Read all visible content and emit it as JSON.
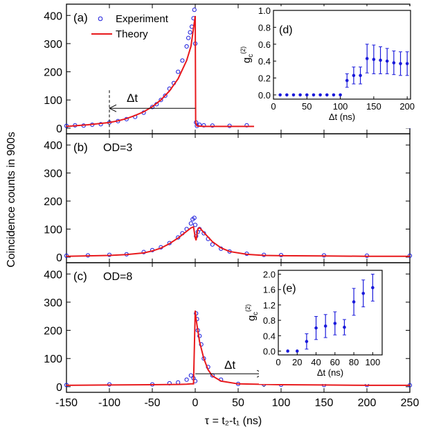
{
  "figure": {
    "ylabel": "Coincidence counts in 900s",
    "xlabel": "τ = t₂-t₁ (ns)",
    "legend": {
      "experiment": "Experiment",
      "theory": "Theory"
    },
    "colors": {
      "experiment": "#1a1adb",
      "theory": "#e8191c",
      "axis": "#000000"
    }
  },
  "chart_data": [
    {
      "id": "a",
      "type": "line",
      "panel_label": "(a)",
      "annotation": "Δt",
      "xlim": [
        -150,
        250
      ],
      "ylim": [
        -20,
        440
      ],
      "xticks": [
        -150,
        -100,
        -50,
        0,
        50,
        100,
        150,
        200,
        250
      ],
      "yticks": [
        0,
        100,
        200,
        300,
        400
      ],
      "series": [
        {
          "name": "Experiment",
          "style": "open-circle",
          "x": [
            -150,
            -140,
            -130,
            -120,
            -110,
            -100,
            -90,
            -80,
            -70,
            -60,
            -50,
            -45,
            -40,
            -35,
            -30,
            -25,
            -20,
            -15,
            -10,
            -8,
            -6,
            -4,
            -2,
            -1,
            0,
            1,
            2,
            5,
            10,
            20,
            40,
            60,
            80,
            100,
            150,
            200,
            250
          ],
          "y": [
            8,
            10,
            9,
            12,
            14,
            20,
            25,
            32,
            40,
            55,
            75,
            85,
            100,
            115,
            140,
            160,
            200,
            240,
            290,
            320,
            340,
            360,
            390,
            420,
            300,
            20,
            8,
            12,
            10,
            9,
            8,
            10,
            8,
            9,
            7,
            8,
            6
          ]
        },
        {
          "name": "Theory",
          "style": "line",
          "x": [
            -150,
            -125,
            -100,
            -90,
            -80,
            -70,
            -60,
            -50,
            -40,
            -30,
            -20,
            -10,
            -5,
            0,
            0.5,
            2,
            10,
            50,
            100,
            150,
            200,
            250
          ],
          "y": [
            6,
            12,
            20,
            26,
            34,
            45,
            58,
            76,
            100,
            132,
            175,
            240,
            290,
            398,
            20,
            8,
            6,
            6,
            6,
            6,
            6,
            6
          ]
        }
      ]
    },
    {
      "id": "b",
      "type": "line",
      "panel_label": "(b)",
      "annotation": "OD=3",
      "xlim": [
        -150,
        250
      ],
      "ylim": [
        -20,
        440
      ],
      "xticks": [
        -150,
        -100,
        -50,
        0,
        50,
        100,
        150,
        200,
        250
      ],
      "yticks": [
        0,
        100,
        200,
        300,
        400
      ],
      "series": [
        {
          "name": "Experiment",
          "style": "open-circle",
          "x": [
            -150,
            -125,
            -100,
            -80,
            -60,
            -50,
            -40,
            -30,
            -20,
            -15,
            -10,
            -5,
            -3,
            -1,
            0,
            1,
            3,
            5,
            10,
            15,
            20,
            30,
            40,
            60,
            80,
            100,
            150,
            200,
            250
          ],
          "y": [
            5,
            6,
            8,
            10,
            18,
            25,
            35,
            50,
            70,
            85,
            100,
            120,
            135,
            140,
            115,
            75,
            90,
            100,
            85,
            65,
            45,
            30,
            20,
            12,
            8,
            7,
            6,
            5,
            5
          ]
        },
        {
          "name": "Theory",
          "style": "line",
          "x": [
            -150,
            -100,
            -80,
            -60,
            -50,
            -40,
            -30,
            -20,
            -10,
            -5,
            -2,
            0,
            1,
            3,
            5,
            10,
            20,
            30,
            40,
            60,
            80,
            100,
            150,
            200,
            250
          ],
          "y": [
            3,
            6,
            9,
            15,
            22,
            32,
            48,
            68,
            92,
            104,
            108,
            70,
            60,
            100,
            105,
            88,
            55,
            33,
            20,
            10,
            6,
            5,
            4,
            3,
            3
          ]
        }
      ]
    },
    {
      "id": "c",
      "type": "line",
      "panel_label": "(c)",
      "annotation": "OD=8",
      "annotation2": "Δt",
      "xlim": [
        -150,
        250
      ],
      "ylim": [
        -20,
        440
      ],
      "xticks": [
        -150,
        -100,
        -50,
        0,
        50,
        100,
        150,
        200,
        250
      ],
      "yticks": [
        0,
        100,
        200,
        300,
        400
      ],
      "series": [
        {
          "name": "Experiment",
          "style": "open-circle",
          "x": [
            -150,
            -100,
            -50,
            -30,
            -20,
            -10,
            -5,
            -2,
            0,
            1,
            2,
            3,
            5,
            7,
            10,
            15,
            20,
            30,
            50,
            80,
            100,
            150,
            200,
            250
          ],
          "y": [
            6,
            8,
            8,
            12,
            15,
            25,
            40,
            30,
            20,
            260,
            240,
            200,
            180,
            150,
            100,
            70,
            40,
            25,
            10,
            8,
            7,
            6,
            6,
            5
          ]
        },
        {
          "name": "Theory",
          "style": "line",
          "x": [
            -150,
            -100,
            -50,
            -20,
            -10,
            -5,
            -2,
            0,
            1,
            2,
            5,
            10,
            15,
            20,
            30,
            50,
            100,
            150,
            200,
            250
          ],
          "y": [
            5,
            6,
            7,
            8,
            9,
            10,
            10,
            270,
            240,
            220,
            160,
            100,
            60,
            38,
            20,
            10,
            7,
            6,
            5,
            5
          ]
        }
      ]
    },
    {
      "id": "d",
      "type": "scatter",
      "panel_label": "(d)",
      "xlabel": "Δt (ns)",
      "ylabel": "g_c(2)",
      "xlim": [
        0,
        205
      ],
      "ylim": [
        -0.05,
        1.0
      ],
      "xticks": [
        0,
        50,
        100,
        150,
        200
      ],
      "yticks": [
        0.0,
        0.2,
        0.4,
        0.6,
        0.8,
        1.0
      ],
      "x": [
        10,
        20,
        30,
        40,
        50,
        60,
        70,
        80,
        90,
        100,
        110,
        120,
        130,
        140,
        150,
        160,
        170,
        180,
        190,
        200
      ],
      "y": [
        0,
        0,
        0,
        0,
        0,
        0,
        0,
        0,
        0,
        0,
        0.17,
        0.23,
        0.23,
        0.43,
        0.42,
        0.41,
        0.4,
        0.38,
        0.37,
        0.37
      ],
      "err": [
        0,
        0,
        0,
        0,
        0,
        0,
        0,
        0,
        0,
        0,
        0.08,
        0.1,
        0.1,
        0.17,
        0.17,
        0.16,
        0.15,
        0.14,
        0.14,
        0.14
      ]
    },
    {
      "id": "e",
      "type": "scatter",
      "panel_label": "(e)",
      "xlabel": "Δt (ns)",
      "ylabel": "g_c(2)",
      "xlim": [
        0,
        110
      ],
      "ylim": [
        -0.1,
        2.1
      ],
      "xticks": [
        0,
        20,
        40,
        60,
        80,
        100
      ],
      "yticks": [
        0.0,
        0.4,
        0.8,
        1.2,
        1.6,
        2.0
      ],
      "x": [
        10,
        20,
        30,
        40,
        50,
        60,
        70,
        80,
        90,
        100
      ],
      "y": [
        0,
        0,
        0.25,
        0.6,
        0.65,
        0.72,
        0.62,
        1.28,
        1.5,
        1.65
      ],
      "err": [
        0,
        0,
        0.2,
        0.3,
        0.3,
        0.3,
        0.2,
        0.35,
        0.35,
        0.35
      ]
    }
  ]
}
